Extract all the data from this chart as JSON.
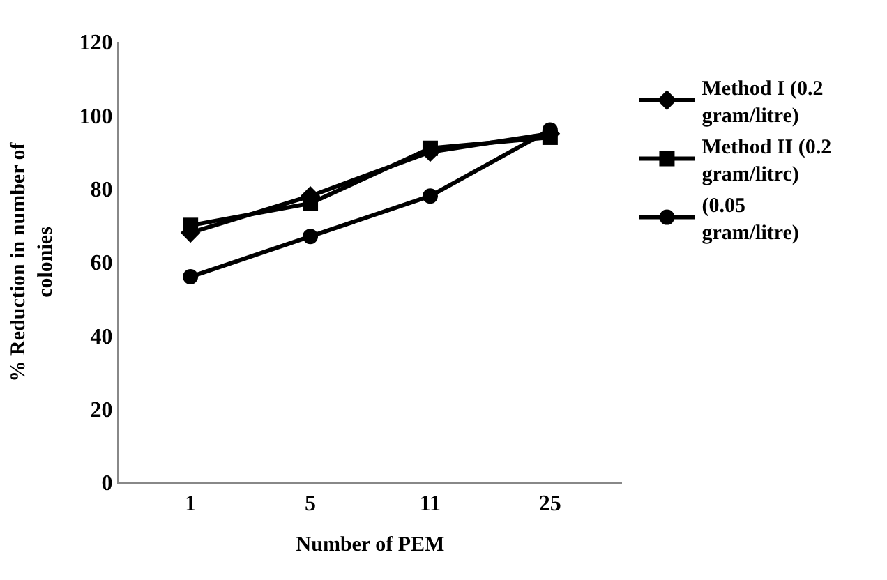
{
  "chart_data": {
    "type": "line",
    "xlabel": "Number of PEM",
    "ylabel": "% Reduction in number of colonies",
    "categories": [
      "1",
      "5",
      "11",
      "25"
    ],
    "series": [
      {
        "name": "Method I (0.2 gram/litre)",
        "color": "#000000",
        "marker": "diamond",
        "values": [
          68,
          78,
          90,
          95
        ]
      },
      {
        "name": "Method II (0.2 gram/litrc)",
        "color": "#000000",
        "marker": "square",
        "values": [
          70,
          76,
          91,
          94
        ]
      },
      {
        "name": "(0.05 gram/litre)",
        "color": "#000000",
        "marker": "circle",
        "values": [
          56,
          67,
          78,
          96
        ]
      }
    ],
    "ylim": [
      0,
      120
    ],
    "yticks": [
      0,
      20,
      40,
      60,
      80,
      100,
      120
    ],
    "legend": "right",
    "line_style": "solid"
  }
}
